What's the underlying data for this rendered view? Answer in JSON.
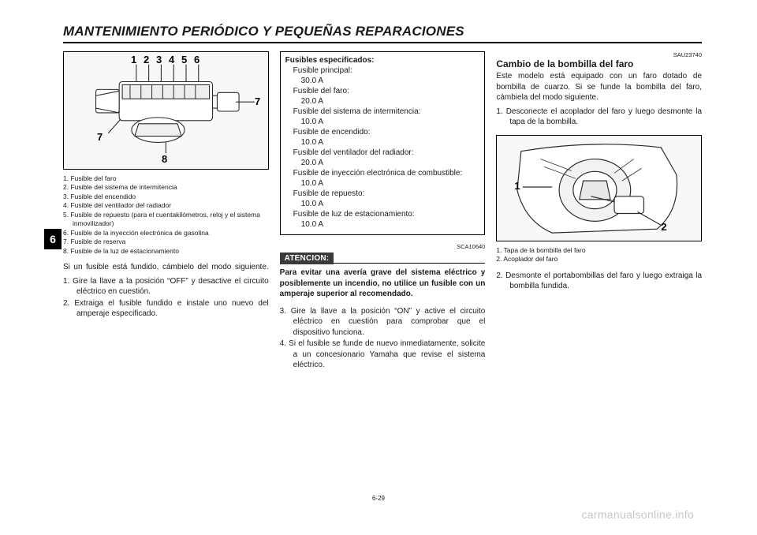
{
  "header": {
    "title": "MANTENIMIENTO PERIÓDICO Y PEQUEÑAS REPARACIONES"
  },
  "page_tab": "6",
  "page_number": "6-29",
  "watermark": "carmanualsonline.info",
  "col1": {
    "fig_callouts": {
      "c1": "1",
      "c2": "2",
      "c3": "3",
      "c4": "4",
      "c5": "5",
      "c6": "6",
      "c7a": "7",
      "c7b": "7",
      "c8": "8"
    },
    "caption": [
      "1. Fusible del faro",
      "2. Fusible del sistema de intermitencia",
      "3. Fusible del encendido",
      "4. Fusible del ventilador del radiador",
      "5. Fusible de repuesto (para el cuentakilómetros, reloj y el sistema inmovilizador)",
      "6. Fusible de la inyección electrónica de gasolina",
      "7. Fusible de reserva",
      "8. Fusible de la luz de estacionamiento"
    ],
    "intro": "Si un fusible está fundido, cámbielo del modo siguiente.",
    "steps": [
      "1. Gire la llave a la posición “OFF” y desactive el circuito eléctrico en cuestión.",
      "2. Extraiga el fusible fundido e instale uno nuevo del amperaje especificado."
    ]
  },
  "col2": {
    "specs": {
      "title": "Fusibles especificados:",
      "items": [
        {
          "label": "Fusible principal:",
          "value": "30.0 A"
        },
        {
          "label": "Fusible del faro:",
          "value": "20.0 A"
        },
        {
          "label": "Fusible del sistema de intermitencia:",
          "value": "10.0 A"
        },
        {
          "label": "Fusible de encendido:",
          "value": "10.0 A"
        },
        {
          "label": "Fusible del ventilador del radiador:",
          "value": "20.0 A"
        },
        {
          "label": "Fusible de inyección electrónica de combustible:",
          "value": "10.0 A"
        },
        {
          "label": "Fusible de repuesto:",
          "value": "10.0 A"
        },
        {
          "label": "Fusible de luz de estacionamiento:",
          "value": "10.0 A"
        }
      ]
    },
    "ref_code": "SCA10640",
    "atencion_label": "ATENCION:",
    "warning": "Para evitar una avería grave del sistema eléctrico y posiblemente un incendio, no utilice un fusible con un amperaje superior al recomendado.",
    "steps": [
      "3. Gire la llave a la posición “ON” y active el circuito eléctrico en cuestión para comprobar que el dispositivo funciona.",
      "4. Si el fusible se funde de nuevo inmediatamente, solicite a un concesionario Yamaha que revise el sistema eléctrico."
    ]
  },
  "col3": {
    "ref_code": "SAU23740",
    "heading": "Cambio de la bombilla del faro",
    "intro": "Este modelo está equipado con un faro dotado de bombilla de cuarzo. Si se funde la bombilla del faro, cámbiela del modo siguiente.",
    "steps_a": [
      "1. Desconecte el acoplador del faro y luego desmonte la tapa de la bombilla."
    ],
    "fig_callouts": {
      "c1": "1",
      "c2": "2"
    },
    "caption": [
      "1. Tapa de la bombilla del faro",
      "2. Acoplador del faro"
    ],
    "steps_b": [
      "2. Desmonte el portabombillas del faro y luego extraiga la bombilla fundida."
    ]
  },
  "style": {
    "colors": {
      "text": "#1a1a1a",
      "rule": "#000000",
      "atencion_bg": "#3a3a3a",
      "atencion_fg": "#ffffff",
      "watermark": "#c7c7c7",
      "figure_bg": "#f8f8f8",
      "figure_stroke": "#2b2b2b"
    },
    "fonts": {
      "header_pt": 17,
      "body_pt": 10,
      "caption_pt": 8.5,
      "heading_pt": 12,
      "refcode_pt": 7.5,
      "watermark_pt": 14
    }
  }
}
